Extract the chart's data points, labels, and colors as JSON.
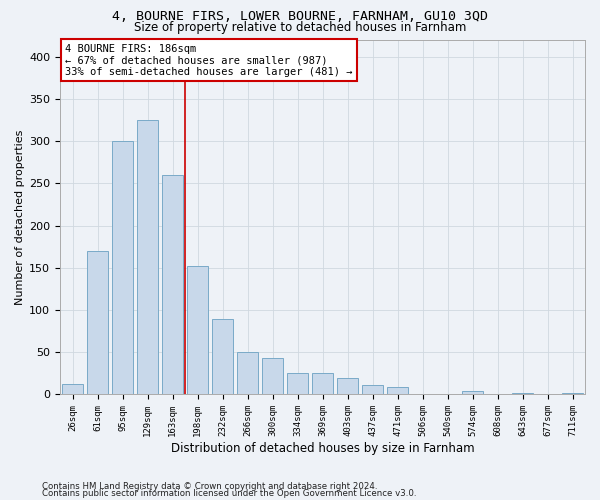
{
  "title1": "4, BOURNE FIRS, LOWER BOURNE, FARNHAM, GU10 3QD",
  "title2": "Size of property relative to detached houses in Farnham",
  "xlabel": "Distribution of detached houses by size in Farnham",
  "ylabel": "Number of detached properties",
  "bar_color": "#c8d8ea",
  "bar_edge_color": "#7aaac8",
  "grid_color": "#d0d8e0",
  "bg_color": "#eef2f7",
  "vline_color": "#cc0000",
  "vline_x": 4.5,
  "annotation_text": "4 BOURNE FIRS: 186sqm\n← 67% of detached houses are smaller (987)\n33% of semi-detached houses are larger (481) →",
  "annotation_box_color": "#ffffff",
  "annotation_box_edge": "#cc0000",
  "categories": [
    "26sqm",
    "61sqm",
    "95sqm",
    "129sqm",
    "163sqm",
    "198sqm",
    "232sqm",
    "266sqm",
    "300sqm",
    "334sqm",
    "369sqm",
    "403sqm",
    "437sqm",
    "471sqm",
    "506sqm",
    "540sqm",
    "574sqm",
    "608sqm",
    "643sqm",
    "677sqm",
    "711sqm"
  ],
  "values": [
    12,
    170,
    300,
    325,
    260,
    152,
    90,
    50,
    43,
    25,
    25,
    19,
    11,
    9,
    0,
    0,
    4,
    0,
    2,
    0,
    2
  ],
  "ylim": [
    0,
    420
  ],
  "yticks": [
    0,
    50,
    100,
    150,
    200,
    250,
    300,
    350,
    400
  ],
  "footer1": "Contains HM Land Registry data © Crown copyright and database right 2024.",
  "footer2": "Contains public sector information licensed under the Open Government Licence v3.0."
}
